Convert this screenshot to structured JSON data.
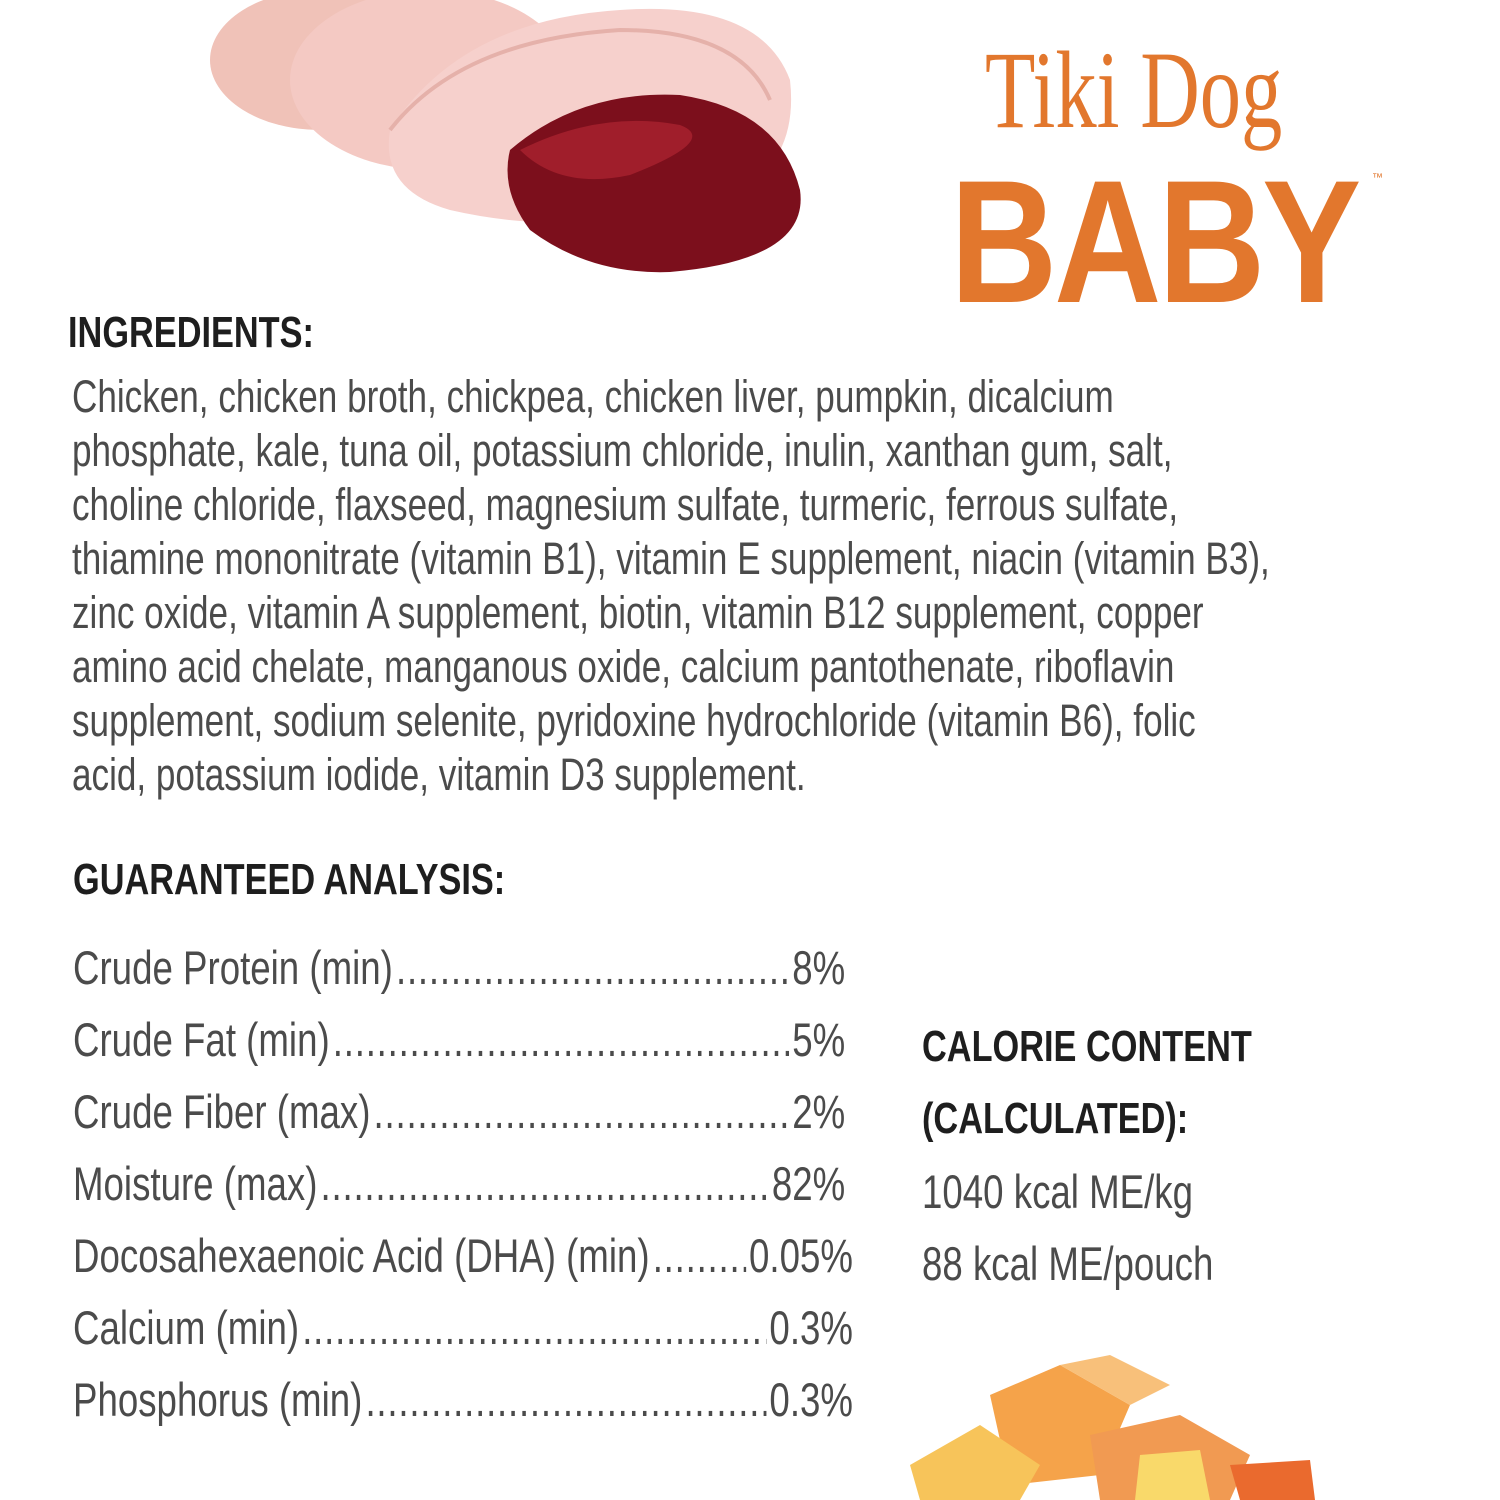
{
  "brand": {
    "logo_line1": "Tiki Dog",
    "logo_line2": "BABY",
    "trademark": "™",
    "color": "#e2772d"
  },
  "ingredients": {
    "heading": "INGREDIENTS:",
    "lines": [
      "Chicken, chicken broth, chickpea, chicken liver, pumpkin, dicalcium",
      "phosphate, kale, tuna oil, potassium chloride, inulin, xanthan gum, salt,",
      "choline chloride, flaxseed, magnesium sulfate, turmeric, ferrous sulfate,",
      "thiamine mononitrate (vitamin B1), vitamin E supplement, niacin (vitamin B3),",
      "zinc oxide, vitamin A supplement, biotin, vitamin B12 supplement, copper",
      "amino acid chelate, manganous oxide, calcium pantothenate, riboflavin",
      "supplement, sodium selenite, pyridoxine hydrochloride (vitamin B6), folic",
      "acid, potassium iodide, vitamin D3 supplement."
    ]
  },
  "analysis": {
    "heading": "GUARANTEED ANALYSIS:",
    "rows": [
      {
        "label": "Crude Protein (min)",
        "value": "8%"
      },
      {
        "label": "Crude Fat (min)",
        "value": "5%"
      },
      {
        "label": "Crude Fiber (max)",
        "value": "2%"
      },
      {
        "label": "Moisture (max)",
        "value": "82%"
      },
      {
        "label": "Docosahexaenoic Acid (DHA) (min)",
        "value": "0.05%"
      },
      {
        "label": "Calcium (min)",
        "value": "0.3%"
      },
      {
        "label": "Phosphorus (min)",
        "value": "0.3%"
      }
    ]
  },
  "calorie": {
    "heading_line1": "CALORIE CONTENT",
    "heading_line2": "(CALCULATED):",
    "per_kg": "1040 kcal ME/kg",
    "per_pouch": "88 kcal ME/pouch"
  },
  "images": {
    "top": "chicken-and-liver-photo",
    "bottom": "pumpkin-photo"
  }
}
